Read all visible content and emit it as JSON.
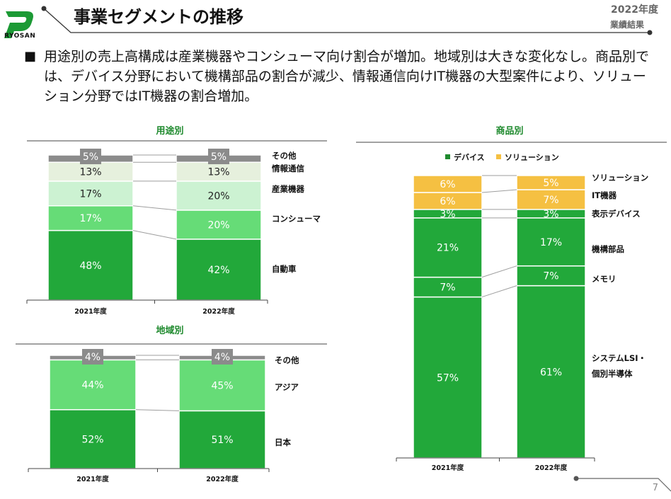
{
  "header": {
    "logo_text": "RYOSAN",
    "title": "事業セグメントの推移",
    "year": "2022年度",
    "results": "業績結果"
  },
  "summary": {
    "bullet": "■",
    "text": "用途別の売上高構成は産業機器やコンシューマ向け割合が増加。地域別は大きな変化なし。商品別では、デバイス分野において機構部品の割合が減少、情報通信向けIT機器の大型案件により、ソリューション分野ではIT機器の割合増加。"
  },
  "page_number": "7",
  "colors": {
    "accent_green": "#1f8a2e",
    "dark_green": "#22a83a",
    "mid_green": "#66dc77",
    "light_green": "#ccf2d2",
    "pale_green": "#e6f0dd",
    "gray": "#8b8b8b",
    "yellow": "#f5c042",
    "line": "#9e9e9e"
  },
  "chart_data": [
    {
      "id": "usage",
      "type": "bar",
      "stacked": true,
      "title": "用途別",
      "categories": [
        "2021年度",
        "2022年度"
      ],
      "series": [
        {
          "name": "自動車",
          "values": [
            48,
            42
          ],
          "labels": [
            "48%",
            "42%"
          ]
        },
        {
          "name": "コンシューマ",
          "values": [
            17,
            20
          ],
          "labels": [
            "17%",
            "20%"
          ]
        },
        {
          "name": "産業機器",
          "values": [
            17,
            20
          ],
          "labels": [
            "17%",
            "20%"
          ]
        },
        {
          "name": "情報通信",
          "values": [
            13,
            13
          ],
          "labels": [
            "13%",
            "13%"
          ]
        },
        {
          "name": "その他",
          "values": [
            5,
            5
          ],
          "labels": [
            "5%",
            "5%"
          ]
        }
      ],
      "ylim": [
        0,
        100
      ]
    },
    {
      "id": "region",
      "type": "bar",
      "stacked": true,
      "title": "地域別",
      "categories": [
        "2021年度",
        "2022年度"
      ],
      "series": [
        {
          "name": "日本",
          "values": [
            52,
            51
          ],
          "labels": [
            "52%",
            "51%"
          ]
        },
        {
          "name": "アジア",
          "values": [
            44,
            45
          ],
          "labels": [
            "44%",
            "45%"
          ]
        },
        {
          "name": "その他",
          "values": [
            4,
            4
          ],
          "labels": [
            "4%",
            "4%"
          ]
        }
      ],
      "ylim": [
        0,
        100
      ]
    },
    {
      "id": "product",
      "type": "bar",
      "stacked": true,
      "title": "商品別",
      "legend": [
        "デバイス",
        "ソリューション"
      ],
      "categories": [
        "2021年度",
        "2022年度"
      ],
      "series": [
        {
          "name": "システムLSI・個別半導体",
          "values": [
            57,
            61
          ],
          "labels": [
            "57%",
            "61%"
          ]
        },
        {
          "name": "メモリ",
          "values": [
            7,
            7
          ],
          "labels": [
            "7%",
            "7%"
          ]
        },
        {
          "name": "機構部品",
          "values": [
            21,
            17
          ],
          "labels": [
            "21%",
            "17%"
          ]
        },
        {
          "name": "表示デバイス",
          "values": [
            3,
            3
          ],
          "labels": [
            "3%",
            "3%"
          ]
        },
        {
          "name": "IT機器",
          "values": [
            6,
            7
          ],
          "labels": [
            "6%",
            "7%"
          ]
        },
        {
          "name": "ソリューション",
          "values": [
            6,
            5
          ],
          "labels": [
            "6%",
            "5%"
          ]
        }
      ],
      "ylim": [
        0,
        100
      ]
    }
  ]
}
